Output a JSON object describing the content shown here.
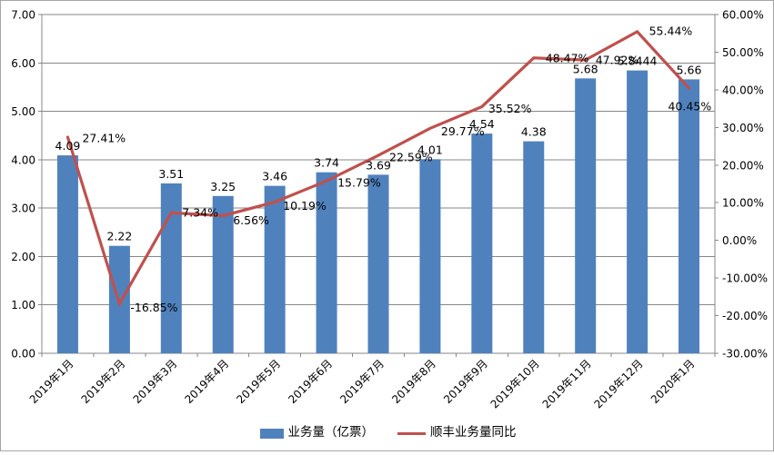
{
  "chart_data": {
    "type": "bar",
    "subtype": "combo-bar-line",
    "categories": [
      "2019年1月",
      "2019年2月",
      "2019年3月",
      "2019年4月",
      "2019年5月",
      "2019年6月",
      "2019年7月",
      "2019年8月",
      "2019年9月",
      "2019年10月",
      "2019年11月",
      "2019年12月",
      "2020年1月"
    ],
    "series": [
      {
        "name": "业务量（亿票）",
        "type": "bar",
        "axis": "left",
        "color": "#4F81BD",
        "values": [
          4.09,
          2.22,
          3.51,
          3.25,
          3.46,
          3.74,
          3.69,
          4.01,
          4.54,
          4.38,
          5.68,
          5.8444,
          5.66
        ],
        "labels": [
          "4.09",
          "2.22",
          "3.51",
          "3.25",
          "3.46",
          "3.74",
          "3.69",
          "4.01",
          "4.54",
          "4.38",
          "5.68",
          "5.8444",
          "5.66"
        ]
      },
      {
        "name": "顺丰业务量同比",
        "type": "line",
        "axis": "right",
        "color": "#C0504D",
        "values": [
          27.41,
          -16.85,
          7.34,
          6.56,
          10.19,
          15.79,
          22.59,
          29.77,
          35.52,
          48.47,
          47.92,
          55.44,
          40.45
        ],
        "labels": [
          "27.41%",
          "-16.85%",
          "7.34%",
          "6.56%",
          "10.19%",
          "15.79%",
          "22.59%",
          "29.77%",
          "35.52%",
          "48.47%",
          "47.92%",
          "55.44%",
          "40.45%"
        ]
      }
    ],
    "left_axis": {
      "min": 0,
      "max": 7,
      "step": 1,
      "tick_labels": [
        "7.00",
        "6.00",
        "5.00",
        "4.00",
        "3.00",
        "2.00",
        "1.00",
        "0.00"
      ]
    },
    "right_axis": {
      "min": -30,
      "max": 60,
      "step": 10,
      "tick_labels": [
        "60.00%",
        "50.00%",
        "40.00%",
        "30.00%",
        "20.00%",
        "10.00%",
        "0.00%",
        "-10.00%",
        "-20.00%",
        "-30.00%"
      ]
    },
    "legend": {
      "position": "bottom",
      "entries": [
        "业务量（亿票）",
        "顺丰业务量同比"
      ]
    },
    "grid": true,
    "xlabel": "",
    "ylabel": ""
  },
  "colors": {
    "bar": "#4F81BD",
    "line": "#C0504D",
    "grid": "#878787",
    "axis": "#878787",
    "text": "#000000",
    "frame_border": "#A6A6A6",
    "background": "#FFFFFF"
  }
}
